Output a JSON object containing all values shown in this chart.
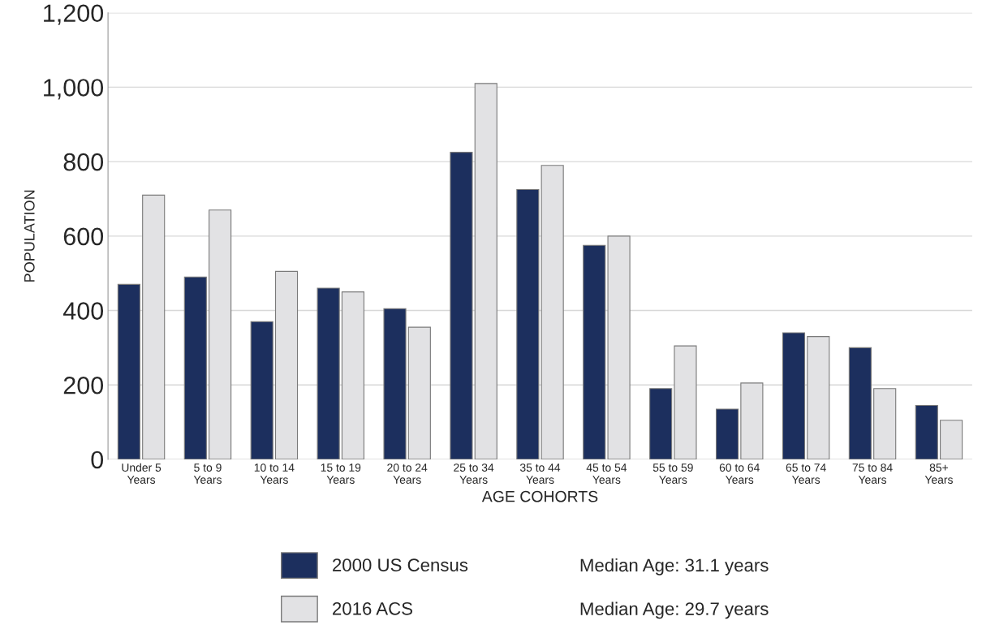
{
  "chart_data": {
    "type": "bar",
    "xlabel": "AGE COHORTS",
    "ylabel": "POPULATION",
    "categories": [
      "Under 5\nYears",
      "5 to 9\nYears",
      "10 to 14\nYears",
      "15 to 19\nYears",
      "20 to 24\nYears",
      "25 to 34\nYears",
      "35 to 44\nYears",
      "45 to 54\nYears",
      "55 to 59\nYears",
      "60 to 64\nYears",
      "65 to 74\nYears",
      "75 to 84\nYears",
      "85+\nYears"
    ],
    "series": [
      {
        "name": "2000 US Census",
        "color": "#1c2f5e",
        "values": [
          470,
          490,
          370,
          460,
          405,
          825,
          725,
          575,
          190,
          135,
          340,
          300,
          145
        ]
      },
      {
        "name": "2016 ACS",
        "color": "#e2e2e4",
        "values": [
          710,
          670,
          505,
          450,
          355,
          1010,
          790,
          600,
          305,
          205,
          330,
          190,
          105
        ]
      }
    ],
    "ylim": [
      0,
      1200
    ],
    "yticks": [
      0,
      200,
      400,
      600,
      800,
      {
        "value": 1000,
        "label": "1,000"
      },
      {
        "value": 1200,
        "label": "1,200"
      }
    ],
    "grid": "y",
    "legend": "bottom",
    "annotations": [
      "Median Age: 31.1 years",
      "Median Age: 29.7 years"
    ]
  }
}
